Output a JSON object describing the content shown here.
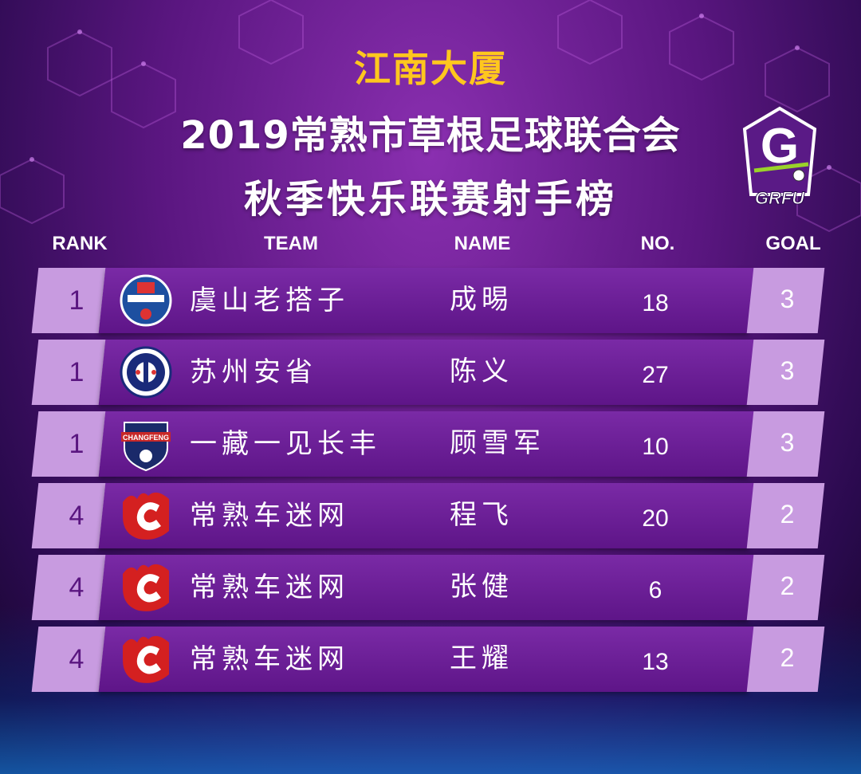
{
  "sponsor": "江南大厦",
  "title_line1": "2019常熟市草根足球联合会",
  "title_line2": "秋季快乐联赛射手榜",
  "logo_text": "GRFU",
  "logo_letter": "G",
  "headers": {
    "rank": "RANK",
    "team": "TEAM",
    "name": "NAME",
    "no": "NO.",
    "goal": "GOAL"
  },
  "rows": [
    {
      "rank": "1",
      "team": "虞山老搭子",
      "name": "成晹",
      "no": "18",
      "goal": "3",
      "badge": "yushan-badge-icon"
    },
    {
      "rank": "1",
      "team": "苏州安省",
      "name": "陈义",
      "no": "27",
      "goal": "3",
      "badge": "ansheng-badge-icon"
    },
    {
      "rank": "1",
      "team": "一藏一见长丰",
      "name": "顾雪军",
      "no": "10",
      "goal": "3",
      "badge": "changfeng-badge-icon",
      "badge_text": "CHANGFENG"
    },
    {
      "rank": "4",
      "team": "常熟车迷网",
      "name": "程飞",
      "no": "20",
      "goal": "2",
      "badge": "flame-c-badge-icon"
    },
    {
      "rank": "4",
      "team": "常熟车迷网",
      "name": "张健",
      "no": "6",
      "goal": "2",
      "badge": "flame-c-badge-icon"
    },
    {
      "rank": "4",
      "team": "常熟车迷网",
      "name": "王耀",
      "no": "13",
      "goal": "2",
      "badge": "flame-c-badge-icon"
    }
  ],
  "colors": {
    "background": "#5a1680",
    "bar": "#6d1f98",
    "accent_box": "#c89be0",
    "sponsor": "#ffc71e"
  }
}
